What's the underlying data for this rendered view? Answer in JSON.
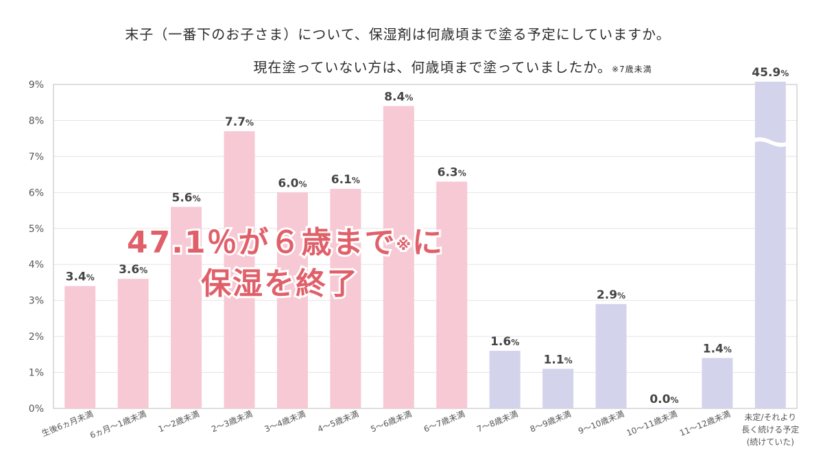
{
  "chart_data": {
    "type": "bar",
    "title_line1": "末子（一番下のお子さま）について、保湿剤は何歳頃まで塗る予定にしていますか。",
    "title_line2": "現在塗っていない方は、何歳頃まで塗っていましたか。",
    "title_note": "※7歳未満",
    "categories": [
      "生後6ヵ月未満",
      "6ヵ月〜1歳未満",
      "1〜2歳未満",
      "2〜3歳未満",
      "3〜4歳未満",
      "4〜5歳未満",
      "5〜6歳未満",
      "6〜7歳未満",
      "7〜8歳未満",
      "8〜9歳未満",
      "9〜10歳未満",
      "10〜11歳未満",
      "11〜12歳未満",
      "未定/それより長く続ける予定(続けていた)"
    ],
    "category_lines": [
      [
        "生後6ヵ月未満"
      ],
      [
        "6ヵ月〜1歳未満"
      ],
      [
        "1〜2歳未満"
      ],
      [
        "2〜3歳未満"
      ],
      [
        "3〜4歳未満"
      ],
      [
        "4〜5歳未満"
      ],
      [
        "5〜6歳未満"
      ],
      [
        "6〜7歳未満"
      ],
      [
        "7〜8歳未満"
      ],
      [
        "8〜9歳未満"
      ],
      [
        "9〜10歳未満"
      ],
      [
        "10〜11歳未満"
      ],
      [
        "11〜12歳未満"
      ],
      [
        "未定/それより",
        "長く続ける予定",
        "(続けていた)"
      ]
    ],
    "values": [
      3.4,
      3.6,
      5.6,
      7.7,
      6.0,
      6.1,
      8.4,
      6.3,
      1.6,
      1.1,
      2.9,
      0.0,
      1.4,
      45.9
    ],
    "value_labels": [
      "3.4",
      "3.6",
      "5.6",
      "7.7",
      "6.0",
      "6.1",
      "8.4",
      "6.3",
      "1.6",
      "1.1",
      "2.9",
      "0.0",
      "1.4",
      "45.9"
    ],
    "unit": "%",
    "yticks": [
      "0%",
      "1%",
      "2%",
      "3%",
      "4%",
      "5%",
      "6%",
      "7%",
      "8%",
      "9%"
    ],
    "ylim": [
      0,
      9
    ],
    "axis_break": true,
    "grid": true,
    "colors": {
      "under_7": "#f7c9d4",
      "over_7": "#d3d3ec",
      "callout": "#e0606a",
      "grid": "#e4e4e4",
      "frame": "#bdbdbd"
    },
    "callout": {
      "line1_main": "47.1％が６歳まで",
      "line1_note": "※",
      "line1_tail": "に",
      "line2": "保湿を終了"
    }
  }
}
